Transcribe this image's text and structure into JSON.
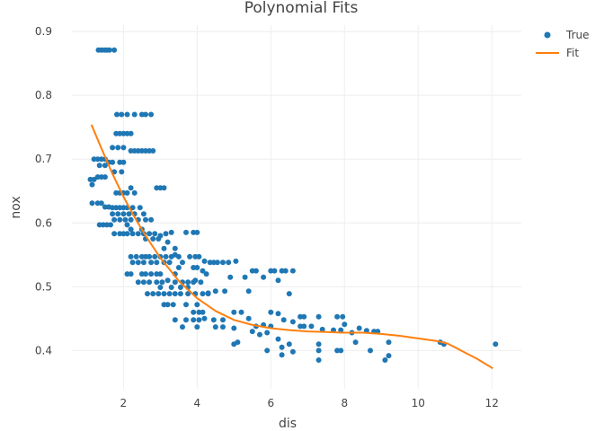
{
  "chart_data": {
    "type": "scatter",
    "title": "Polynomial Fits",
    "xlabel": "dis",
    "ylabel": "nox",
    "xlim": [
      0.6,
      12.8
    ],
    "ylim": [
      0.34,
      0.91
    ],
    "xticks": [
      2,
      4,
      6,
      8,
      10,
      12
    ],
    "yticks": [
      0.4,
      0.5,
      0.6,
      0.7,
      0.8,
      0.9
    ],
    "grid": true,
    "legend_position": "top-right",
    "series": [
      {
        "name": "True",
        "kind": "markers",
        "color": "#1f77b4",
        "points": [
          [
            1.32,
            0.871
          ],
          [
            1.4,
            0.871
          ],
          [
            1.48,
            0.871
          ],
          [
            1.55,
            0.871
          ],
          [
            1.62,
            0.871
          ],
          [
            1.75,
            0.871
          ],
          [
            1.82,
            0.77
          ],
          [
            1.95,
            0.77
          ],
          [
            2.1,
            0.77
          ],
          [
            2.3,
            0.77
          ],
          [
            2.5,
            0.77
          ],
          [
            2.6,
            0.77
          ],
          [
            2.75,
            0.77
          ],
          [
            1.8,
            0.74
          ],
          [
            1.9,
            0.74
          ],
          [
            2.0,
            0.74
          ],
          [
            2.1,
            0.74
          ],
          [
            2.2,
            0.74
          ],
          [
            1.7,
            0.718
          ],
          [
            1.85,
            0.718
          ],
          [
            2.0,
            0.718
          ],
          [
            2.2,
            0.713
          ],
          [
            2.3,
            0.713
          ],
          [
            2.4,
            0.713
          ],
          [
            2.5,
            0.713
          ],
          [
            2.6,
            0.713
          ],
          [
            2.7,
            0.713
          ],
          [
            2.8,
            0.713
          ],
          [
            1.2,
            0.7
          ],
          [
            1.3,
            0.7
          ],
          [
            1.4,
            0.7
          ],
          [
            1.5,
            0.7
          ],
          [
            1.6,
            0.695
          ],
          [
            1.7,
            0.695
          ],
          [
            1.9,
            0.695
          ],
          [
            2.0,
            0.695
          ],
          [
            1.35,
            0.69
          ],
          [
            1.5,
            0.69
          ],
          [
            1.75,
            0.68
          ],
          [
            1.95,
            0.68
          ],
          [
            1.1,
            0.668
          ],
          [
            1.2,
            0.668
          ],
          [
            1.3,
            0.672
          ],
          [
            1.4,
            0.672
          ],
          [
            1.5,
            0.672
          ],
          [
            1.15,
            0.66
          ],
          [
            2.2,
            0.655
          ],
          [
            2.9,
            0.655
          ],
          [
            3.0,
            0.655
          ],
          [
            3.1,
            0.655
          ],
          [
            1.8,
            0.647
          ],
          [
            1.9,
            0.647
          ],
          [
            2.0,
            0.647
          ],
          [
            2.1,
            0.647
          ],
          [
            2.3,
            0.647
          ],
          [
            1.15,
            0.631
          ],
          [
            1.3,
            0.631
          ],
          [
            1.4,
            0.631
          ],
          [
            1.5,
            0.625
          ],
          [
            1.6,
            0.625
          ],
          [
            1.7,
            0.624
          ],
          [
            1.8,
            0.624
          ],
          [
            1.9,
            0.624
          ],
          [
            2.0,
            0.624
          ],
          [
            2.1,
            0.624
          ],
          [
            2.25,
            0.624
          ],
          [
            2.45,
            0.624
          ],
          [
            1.7,
            0.614
          ],
          [
            1.85,
            0.614
          ],
          [
            2.0,
            0.614
          ],
          [
            2.15,
            0.614
          ],
          [
            2.3,
            0.614
          ],
          [
            2.55,
            0.614
          ],
          [
            1.75,
            0.605
          ],
          [
            1.9,
            0.605
          ],
          [
            2.05,
            0.605
          ],
          [
            2.2,
            0.605
          ],
          [
            2.4,
            0.605
          ],
          [
            2.6,
            0.605
          ],
          [
            2.75,
            0.605
          ],
          [
            1.35,
            0.597
          ],
          [
            1.45,
            0.597
          ],
          [
            1.55,
            0.597
          ],
          [
            1.65,
            0.597
          ],
          [
            2.1,
            0.597
          ],
          [
            2.2,
            0.59
          ],
          [
            2.5,
            0.59
          ],
          [
            1.75,
            0.583
          ],
          [
            1.9,
            0.583
          ],
          [
            2.0,
            0.583
          ],
          [
            2.1,
            0.583
          ],
          [
            2.25,
            0.583
          ],
          [
            2.4,
            0.583
          ],
          [
            2.55,
            0.583
          ],
          [
            2.7,
            0.583
          ],
          [
            2.85,
            0.583
          ],
          [
            3.0,
            0.58
          ],
          [
            3.15,
            0.583
          ],
          [
            2.6,
            0.575
          ],
          [
            2.8,
            0.575
          ],
          [
            2.95,
            0.575
          ],
          [
            3.3,
            0.585
          ],
          [
            3.7,
            0.585
          ],
          [
            3.9,
            0.585
          ],
          [
            4.0,
            0.585
          ],
          [
            3.1,
            0.56
          ],
          [
            3.2,
            0.57
          ],
          [
            3.4,
            0.56
          ],
          [
            2.2,
            0.547
          ],
          [
            2.35,
            0.547
          ],
          [
            2.5,
            0.547
          ],
          [
            2.6,
            0.547
          ],
          [
            2.7,
            0.547
          ],
          [
            2.85,
            0.547
          ],
          [
            3.0,
            0.547
          ],
          [
            3.15,
            0.547
          ],
          [
            3.3,
            0.547
          ],
          [
            3.5,
            0.547
          ],
          [
            2.25,
            0.538
          ],
          [
            2.4,
            0.538
          ],
          [
            2.55,
            0.538
          ],
          [
            2.75,
            0.538
          ],
          [
            2.9,
            0.538
          ],
          [
            3.1,
            0.538
          ],
          [
            3.25,
            0.538
          ],
          [
            3.6,
            0.538
          ],
          [
            3.4,
            0.55
          ],
          [
            3.5,
            0.53
          ],
          [
            3.8,
            0.547
          ],
          [
            3.95,
            0.547
          ],
          [
            4.05,
            0.547
          ],
          [
            4.2,
            0.54
          ],
          [
            4.35,
            0.538
          ],
          [
            4.45,
            0.538
          ],
          [
            4.55,
            0.538
          ],
          [
            4.7,
            0.538
          ],
          [
            4.85,
            0.538
          ],
          [
            5.05,
            0.54
          ],
          [
            3.9,
            0.53
          ],
          [
            4.0,
            0.53
          ],
          [
            4.15,
            0.525
          ],
          [
            3.95,
            0.51
          ],
          [
            4.25,
            0.52
          ],
          [
            2.1,
            0.52
          ],
          [
            2.2,
            0.52
          ],
          [
            2.5,
            0.52
          ],
          [
            2.6,
            0.52
          ],
          [
            2.75,
            0.52
          ],
          [
            2.9,
            0.52
          ],
          [
            3.0,
            0.52
          ],
          [
            3.4,
            0.52
          ],
          [
            2.4,
            0.507
          ],
          [
            2.55,
            0.507
          ],
          [
            2.7,
            0.507
          ],
          [
            2.9,
            0.507
          ],
          [
            3.05,
            0.507
          ],
          [
            3.2,
            0.51
          ],
          [
            3.4,
            0.507
          ],
          [
            3.6,
            0.507
          ],
          [
            3.75,
            0.507
          ],
          [
            3.9,
            0.507
          ],
          [
            4.1,
            0.507
          ],
          [
            3.0,
            0.499
          ],
          [
            3.3,
            0.499
          ],
          [
            3.55,
            0.499
          ],
          [
            3.75,
            0.499
          ],
          [
            2.65,
            0.489
          ],
          [
            2.8,
            0.489
          ],
          [
            2.95,
            0.489
          ],
          [
            3.1,
            0.489
          ],
          [
            3.25,
            0.489
          ],
          [
            3.4,
            0.489
          ],
          [
            3.55,
            0.489
          ],
          [
            3.75,
            0.489
          ],
          [
            3.95,
            0.489
          ],
          [
            4.15,
            0.489
          ],
          [
            4.3,
            0.489
          ],
          [
            3.1,
            0.472
          ],
          [
            3.2,
            0.472
          ],
          [
            3.35,
            0.472
          ],
          [
            3.7,
            0.472
          ],
          [
            4.0,
            0.472
          ],
          [
            3.9,
            0.46
          ],
          [
            4.05,
            0.46
          ],
          [
            4.15,
            0.46
          ],
          [
            4.3,
            0.49
          ],
          [
            4.5,
            0.493
          ],
          [
            4.75,
            0.493
          ],
          [
            4.9,
            0.515
          ],
          [
            5.3,
            0.515
          ],
          [
            3.4,
            0.448
          ],
          [
            3.7,
            0.448
          ],
          [
            3.9,
            0.448
          ],
          [
            4.05,
            0.448
          ],
          [
            4.2,
            0.45
          ],
          [
            4.45,
            0.448
          ],
          [
            4.7,
            0.448
          ],
          [
            3.6,
            0.437
          ],
          [
            4.0,
            0.437
          ],
          [
            4.5,
            0.437
          ],
          [
            4.7,
            0.437
          ],
          [
            5.0,
            0.435
          ],
          [
            5.0,
            0.46
          ],
          [
            5.2,
            0.46
          ],
          [
            5.4,
            0.45
          ],
          [
            5.6,
            0.438
          ],
          [
            5.8,
            0.44
          ],
          [
            5.4,
            0.493
          ],
          [
            5.5,
            0.525
          ],
          [
            5.6,
            0.525
          ],
          [
            5.8,
            0.515
          ],
          [
            6.0,
            0.525
          ],
          [
            6.1,
            0.525
          ],
          [
            6.3,
            0.525
          ],
          [
            6.4,
            0.525
          ],
          [
            6.6,
            0.525
          ],
          [
            6.2,
            0.51
          ],
          [
            6.5,
            0.489
          ],
          [
            6.0,
            0.46
          ],
          [
            6.2,
            0.458
          ],
          [
            6.35,
            0.448
          ],
          [
            6.6,
            0.445
          ],
          [
            6.8,
            0.453
          ],
          [
            6.9,
            0.453
          ],
          [
            7.3,
            0.453
          ],
          [
            5.5,
            0.43
          ],
          [
            5.7,
            0.425
          ],
          [
            5.9,
            0.428
          ],
          [
            6.0,
            0.438
          ],
          [
            6.2,
            0.418
          ],
          [
            6.3,
            0.405
          ],
          [
            6.5,
            0.41
          ],
          [
            6.8,
            0.438
          ],
          [
            6.9,
            0.438
          ],
          [
            7.1,
            0.438
          ],
          [
            5.0,
            0.41
          ],
          [
            5.1,
            0.413
          ],
          [
            5.9,
            0.4
          ],
          [
            6.3,
            0.393
          ],
          [
            6.6,
            0.398
          ],
          [
            7.3,
            0.4
          ],
          [
            7.3,
            0.385
          ],
          [
            7.4,
            0.433
          ],
          [
            7.8,
            0.453
          ],
          [
            7.95,
            0.453
          ],
          [
            8.0,
            0.441
          ],
          [
            7.7,
            0.432
          ],
          [
            7.9,
            0.432
          ],
          [
            7.3,
            0.41
          ],
          [
            7.8,
            0.4
          ],
          [
            7.9,
            0.4
          ],
          [
            8.2,
            0.428
          ],
          [
            8.4,
            0.435
          ],
          [
            8.6,
            0.431
          ],
          [
            8.8,
            0.43
          ],
          [
            8.9,
            0.43
          ],
          [
            8.3,
            0.413
          ],
          [
            8.7,
            0.4
          ],
          [
            9.1,
            0.385
          ],
          [
            9.2,
            0.392
          ],
          [
            9.2,
            0.413
          ],
          [
            10.6,
            0.413
          ],
          [
            10.7,
            0.41
          ],
          [
            12.1,
            0.41
          ]
        ]
      },
      {
        "name": "Fit",
        "kind": "line",
        "color": "#ff7f0e",
        "points": [
          [
            1.13,
            0.754
          ],
          [
            1.4,
            0.717
          ],
          [
            1.7,
            0.677
          ],
          [
            2.0,
            0.641
          ],
          [
            2.3,
            0.609
          ],
          [
            2.6,
            0.58
          ],
          [
            3.0,
            0.545
          ],
          [
            3.5,
            0.509
          ],
          [
            4.0,
            0.482
          ],
          [
            4.5,
            0.462
          ],
          [
            5.0,
            0.448
          ],
          [
            5.5,
            0.44
          ],
          [
            6.0,
            0.435
          ],
          [
            6.5,
            0.432
          ],
          [
            7.0,
            0.43
          ],
          [
            7.5,
            0.429
          ],
          [
            8.0,
            0.428
          ],
          [
            8.5,
            0.428
          ],
          [
            9.0,
            0.426
          ],
          [
            9.5,
            0.423
          ],
          [
            10.0,
            0.419
          ],
          [
            10.5,
            0.415
          ],
          [
            10.8,
            0.411
          ],
          [
            11.2,
            0.399
          ],
          [
            11.6,
            0.387
          ],
          [
            12.03,
            0.372
          ]
        ]
      }
    ]
  }
}
